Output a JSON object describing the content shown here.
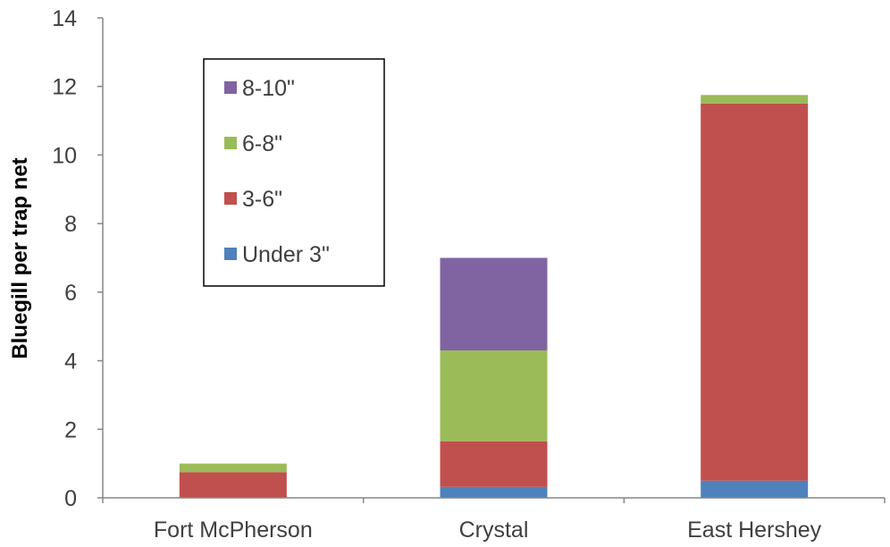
{
  "chart_data": {
    "type": "bar",
    "stacked": true,
    "categories": [
      "Fort McPherson",
      "Crystal",
      "East Hershey"
    ],
    "series": [
      {
        "name": "Under 3\"",
        "color": "#4f81bd",
        "values": [
          0,
          0.32,
          0.5
        ]
      },
      {
        "name": "3-6\"",
        "color": "#c0504d",
        "values": [
          0.75,
          1.33,
          11.0
        ]
      },
      {
        "name": "6-8\"",
        "color": "#9bbb59",
        "values": [
          0.25,
          2.65,
          0.25
        ]
      },
      {
        "name": "8-10\"",
        "color": "#8064a2",
        "values": [
          0,
          2.7,
          0
        ]
      }
    ],
    "title": "",
    "xlabel": "",
    "ylabel": "Bluegill per trap net",
    "ylim": [
      0,
      14
    ],
    "yticks": [
      0,
      2,
      4,
      6,
      8,
      10,
      12,
      14
    ],
    "grid": false,
    "legend_position": "top-left (inside plot)",
    "legend_order": [
      "8-10\"",
      "6-8\"",
      "3-6\"",
      "Under 3\""
    ]
  }
}
